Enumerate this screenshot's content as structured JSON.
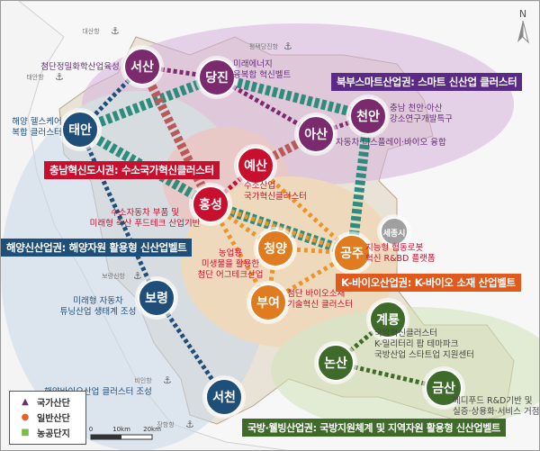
{
  "north_label": "N",
  "colors": {
    "north": "#6a2c7e",
    "north_node": "#7b2a6e",
    "innov": "#c8102e",
    "marine": "#1f4e79",
    "bio": "#e07b20",
    "defense": "#3f6b2a",
    "sejong": "#a0a0a0",
    "teal": "#2e8c7c"
  },
  "banners": [
    {
      "text": "북부스마트산업권: 스마트 신산업 클러스터",
      "color": "#5b2a86"
    },
    {
      "text": "충남혁신도시권: 수소국가혁신클러스터",
      "color": "#c8102e"
    },
    {
      "text": "해양신산업권: 해양자원 활용형 신산업벨트",
      "color": "#1f4e79"
    },
    {
      "text": "K-바이오산업권: K-바이오 소재 산업벨트",
      "color": "#e05a1e"
    },
    {
      "text": "국방·웰빙산업권: 국방지원체계 및 지역자원 활용형 신산업벨트",
      "color": "#3f6b2a"
    }
  ],
  "nodes": [
    {
      "name": "서산",
      "group": "north"
    },
    {
      "name": "당진",
      "group": "north"
    },
    {
      "name": "아산",
      "group": "north"
    },
    {
      "name": "천안",
      "group": "north"
    },
    {
      "name": "태안",
      "group": "marine"
    },
    {
      "name": "예산",
      "group": "innov"
    },
    {
      "name": "홍성",
      "group": "innov"
    },
    {
      "name": "청양",
      "group": "bio"
    },
    {
      "name": "공주",
      "group": "bio"
    },
    {
      "name": "부여",
      "group": "bio"
    },
    {
      "name": "보령",
      "group": "marine"
    },
    {
      "name": "서천",
      "group": "marine"
    },
    {
      "name": "계룡",
      "group": "defense"
    },
    {
      "name": "논산",
      "group": "defense"
    },
    {
      "name": "금산",
      "group": "defense"
    },
    {
      "name": "세종시",
      "group": "sejong"
    }
  ],
  "annotations": [
    {
      "lines": [
        "첨단정밀화학산업육성"
      ],
      "color": "#6a2c7e"
    },
    {
      "lines": [
        "미래에너지",
        "융복합 혁신벨트"
      ],
      "color": "#6a2c7e"
    },
    {
      "lines": [
        "충남 천안·아산",
        "강소연구개발특구"
      ],
      "color": "#6a2c7e"
    },
    {
      "lines": [
        "자동차·디스플레이·바이오 융합"
      ],
      "color": "#6a2c7e"
    },
    {
      "lines": [
        "해양 헬스케어",
        "복합 클러스터"
      ],
      "color": "#1f4e79"
    },
    {
      "lines": [
        "수소산업",
        "국가혁신클러스터"
      ],
      "color": "#c8102e"
    },
    {
      "lines": [
        "수소자동차 부품 및",
        "미래형 축산 푸드테크 산업기반"
      ],
      "color": "#c8102e"
    },
    {
      "lines": [
        "농업용",
        "미생물을 활용한",
        "첨단 어그테크산업"
      ],
      "color": "#c8102e"
    },
    {
      "lines": [
        "지능형 협동로봇",
        "혁신 R&BD 플랫폼"
      ],
      "color": "#c8102e"
    },
    {
      "lines": [
        "미래형 자동차",
        "튜닝산업 생태계 조성"
      ],
      "color": "#1f4e79"
    },
    {
      "lines": [
        "첨단 바이오소재",
        "기술혁신 클러스터"
      ],
      "color": "#c8102e"
    },
    {
      "lines": [
        "국방혁신클러스터",
        "K-밀리터리 팝 테마파크",
        "국방산업 스타트업 지원센터"
      ],
      "color": "#444444"
    },
    {
      "lines": [
        "메디푸드 R&D기반 및",
        "실증·상용화·서비스 거점"
      ],
      "color": "#444444"
    },
    {
      "lines": [
        "해양바이오산업 클러스터 조성"
      ],
      "color": "#1f4e79"
    }
  ],
  "ports": [
    "대산항",
    "평택당진항",
    "태안항",
    "보령신항",
    "비인항",
    "장항항"
  ],
  "legend": [
    {
      "label": "국가산단",
      "icon": "triangle",
      "color": "#6a2c7e"
    },
    {
      "label": "일반산단",
      "icon": "circle",
      "color": "#e8602c"
    },
    {
      "label": "농공단지",
      "icon": "square",
      "color": "#7dbb4a"
    }
  ],
  "scale": {
    "ticks": [
      "0",
      "10km",
      "20km"
    ]
  }
}
